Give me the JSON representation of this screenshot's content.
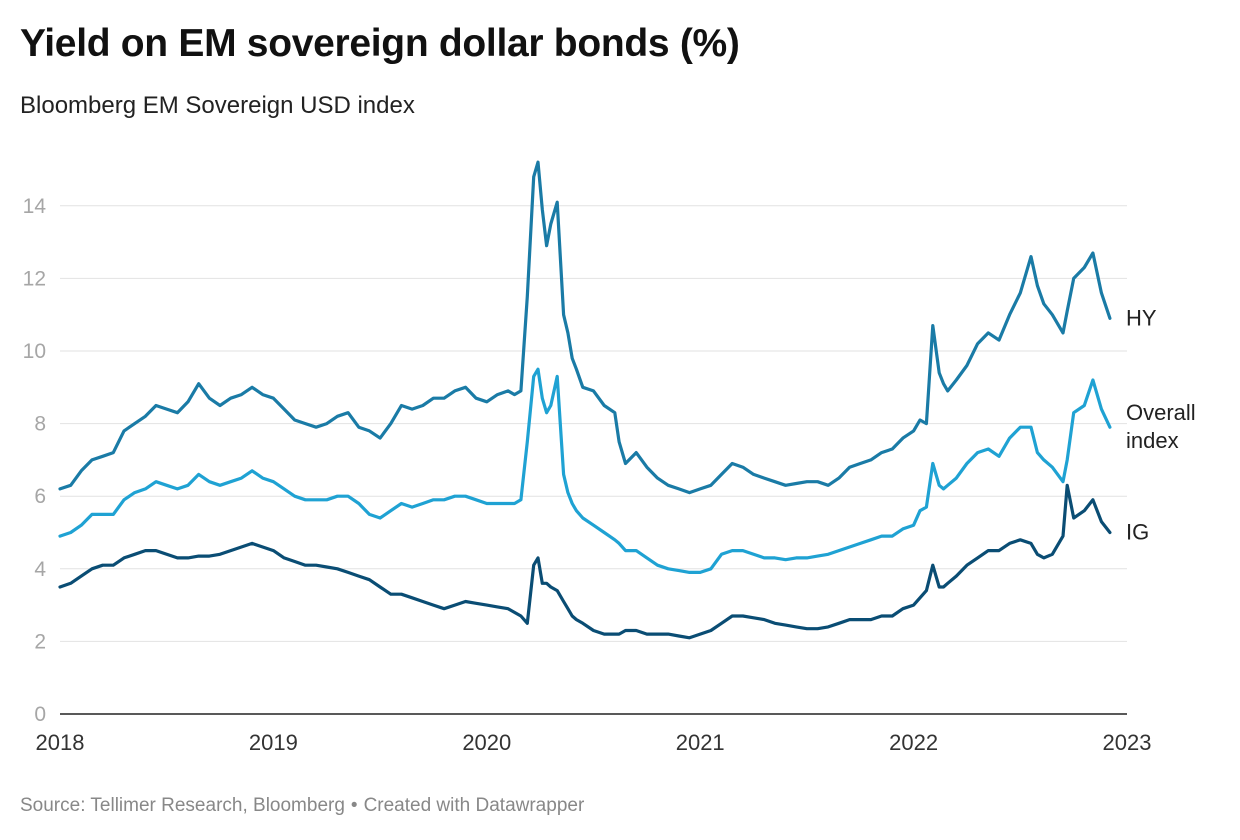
{
  "title": "Yield on EM sovereign dollar bonds (%)",
  "subtitle": "Bloomberg EM Sovereign USD index",
  "footer": {
    "source": "Source: Tellimer Research, Bloomberg",
    "separator": "•",
    "credit": "Created with Datawrapper"
  },
  "colors": {
    "hy": "#1a7ba6",
    "overall": "#1fa2d3",
    "ig": "#0a4d74",
    "grid": "#e2e2e2",
    "axis": "#222222"
  },
  "chart_data": {
    "type": "line",
    "title": "Yield on EM sovereign dollar bonds (%)",
    "subtitle": "Bloomberg EM Sovereign USD index",
    "xlabel": "",
    "ylabel": "",
    "xlim": [
      2018.0,
      2023.0
    ],
    "ylim": [
      0,
      15.5
    ],
    "yticks": [
      0,
      2,
      4,
      6,
      8,
      10,
      12,
      14
    ],
    "xticks": [
      "2018",
      "2019",
      "2020",
      "2021",
      "2022",
      "2023"
    ],
    "grid": true,
    "legend": "inline labels at right end of each line",
    "series": [
      {
        "name": "HY",
        "label": "HY",
        "color": "#1a7ba6",
        "x": [
          2018.0,
          2018.05,
          2018.1,
          2018.15,
          2018.2,
          2018.25,
          2018.3,
          2018.35,
          2018.4,
          2018.45,
          2018.5,
          2018.55,
          2018.6,
          2018.65,
          2018.7,
          2018.75,
          2018.8,
          2018.85,
          2018.9,
          2018.95,
          2019.0,
          2019.05,
          2019.1,
          2019.15,
          2019.2,
          2019.25,
          2019.3,
          2019.35,
          2019.4,
          2019.45,
          2019.5,
          2019.55,
          2019.6,
          2019.65,
          2019.7,
          2019.75,
          2019.8,
          2019.85,
          2019.9,
          2019.95,
          2020.0,
          2020.05,
          2020.1,
          2020.13,
          2020.16,
          2020.19,
          2020.22,
          2020.24,
          2020.26,
          2020.28,
          2020.3,
          2020.33,
          2020.36,
          2020.38,
          2020.4,
          2020.42,
          2020.45,
          2020.5,
          2020.55,
          2020.6,
          2020.62,
          2020.65,
          2020.7,
          2020.75,
          2020.8,
          2020.85,
          2020.9,
          2020.95,
          2021.0,
          2021.05,
          2021.1,
          2021.15,
          2021.2,
          2021.25,
          2021.3,
          2021.35,
          2021.4,
          2021.45,
          2021.5,
          2021.55,
          2021.6,
          2021.65,
          2021.7,
          2021.75,
          2021.8,
          2021.85,
          2021.9,
          2021.95,
          2022.0,
          2022.03,
          2022.06,
          2022.09,
          2022.12,
          2022.14,
          2022.16,
          2022.2,
          2022.25,
          2022.3,
          2022.35,
          2022.4,
          2022.45,
          2022.5,
          2022.55,
          2022.58,
          2022.61,
          2022.65,
          2022.7,
          2022.72,
          2022.75,
          2022.8,
          2022.84,
          2022.88,
          2022.92
        ],
        "values": [
          6.2,
          6.3,
          6.7,
          7.0,
          7.1,
          7.2,
          7.8,
          8.0,
          8.2,
          8.5,
          8.4,
          8.3,
          8.6,
          9.1,
          8.7,
          8.5,
          8.7,
          8.8,
          9.0,
          8.8,
          8.7,
          8.4,
          8.1,
          8.0,
          7.9,
          8.0,
          8.2,
          8.3,
          7.9,
          7.8,
          7.6,
          8.0,
          8.5,
          8.4,
          8.5,
          8.7,
          8.7,
          8.9,
          9.0,
          8.7,
          8.6,
          8.8,
          8.9,
          8.8,
          8.9,
          11.5,
          14.8,
          15.2,
          13.9,
          12.9,
          13.5,
          14.1,
          11.0,
          10.5,
          9.8,
          9.5,
          9.0,
          8.9,
          8.5,
          8.3,
          7.5,
          6.9,
          7.2,
          6.8,
          6.5,
          6.3,
          6.2,
          6.1,
          6.2,
          6.3,
          6.6,
          6.9,
          6.8,
          6.6,
          6.5,
          6.4,
          6.3,
          6.35,
          6.4,
          6.4,
          6.3,
          6.5,
          6.8,
          6.9,
          7.0,
          7.2,
          7.3,
          7.6,
          7.8,
          8.1,
          8.0,
          10.7,
          9.4,
          9.1,
          8.9,
          9.2,
          9.6,
          10.2,
          10.5,
          10.3,
          11.0,
          11.6,
          12.6,
          11.8,
          11.3,
          11.0,
          10.5,
          11.1,
          12.0,
          12.3,
          12.7,
          11.6,
          10.9
        ]
      },
      {
        "name": "Overall index",
        "label": [
          "Overall",
          "index"
        ],
        "color": "#1fa2d3",
        "x": [
          2018.0,
          2018.05,
          2018.1,
          2018.15,
          2018.2,
          2018.25,
          2018.3,
          2018.35,
          2018.4,
          2018.45,
          2018.5,
          2018.55,
          2018.6,
          2018.65,
          2018.7,
          2018.75,
          2018.8,
          2018.85,
          2018.9,
          2018.95,
          2019.0,
          2019.05,
          2019.1,
          2019.15,
          2019.2,
          2019.25,
          2019.3,
          2019.35,
          2019.4,
          2019.45,
          2019.5,
          2019.55,
          2019.6,
          2019.65,
          2019.7,
          2019.75,
          2019.8,
          2019.85,
          2019.9,
          2019.95,
          2020.0,
          2020.05,
          2020.1,
          2020.13,
          2020.16,
          2020.19,
          2020.22,
          2020.24,
          2020.26,
          2020.28,
          2020.3,
          2020.33,
          2020.36,
          2020.38,
          2020.4,
          2020.42,
          2020.45,
          2020.5,
          2020.55,
          2020.6,
          2020.62,
          2020.65,
          2020.7,
          2020.75,
          2020.8,
          2020.85,
          2020.9,
          2020.95,
          2021.0,
          2021.05,
          2021.1,
          2021.15,
          2021.2,
          2021.25,
          2021.3,
          2021.35,
          2021.4,
          2021.45,
          2021.5,
          2021.55,
          2021.6,
          2021.65,
          2021.7,
          2021.75,
          2021.8,
          2021.85,
          2021.9,
          2021.95,
          2022.0,
          2022.03,
          2022.06,
          2022.09,
          2022.12,
          2022.14,
          2022.16,
          2022.2,
          2022.25,
          2022.3,
          2022.35,
          2022.4,
          2022.45,
          2022.5,
          2022.55,
          2022.58,
          2022.61,
          2022.65,
          2022.7,
          2022.72,
          2022.75,
          2022.8,
          2022.84,
          2022.88,
          2022.92
        ],
        "values": [
          4.9,
          5.0,
          5.2,
          5.5,
          5.5,
          5.5,
          5.9,
          6.1,
          6.2,
          6.4,
          6.3,
          6.2,
          6.3,
          6.6,
          6.4,
          6.3,
          6.4,
          6.5,
          6.7,
          6.5,
          6.4,
          6.2,
          6.0,
          5.9,
          5.9,
          5.9,
          6.0,
          6.0,
          5.8,
          5.5,
          5.4,
          5.6,
          5.8,
          5.7,
          5.8,
          5.9,
          5.9,
          6.0,
          6.0,
          5.9,
          5.8,
          5.8,
          5.8,
          5.8,
          5.9,
          7.5,
          9.3,
          9.5,
          8.7,
          8.3,
          8.5,
          9.3,
          6.6,
          6.1,
          5.8,
          5.6,
          5.4,
          5.2,
          5.0,
          4.8,
          4.7,
          4.5,
          4.5,
          4.3,
          4.1,
          4.0,
          3.95,
          3.9,
          3.9,
          4.0,
          4.4,
          4.5,
          4.5,
          4.4,
          4.3,
          4.3,
          4.25,
          4.3,
          4.3,
          4.35,
          4.4,
          4.5,
          4.6,
          4.7,
          4.8,
          4.9,
          4.9,
          5.1,
          5.2,
          5.6,
          5.7,
          6.9,
          6.3,
          6.2,
          6.3,
          6.5,
          6.9,
          7.2,
          7.3,
          7.1,
          7.6,
          7.9,
          7.9,
          7.2,
          7.0,
          6.8,
          6.4,
          7.0,
          8.3,
          8.5,
          9.2,
          8.4,
          7.9
        ]
      },
      {
        "name": "IG",
        "label": "IG",
        "color": "#0a4d74",
        "x": [
          2018.0,
          2018.05,
          2018.1,
          2018.15,
          2018.2,
          2018.25,
          2018.3,
          2018.35,
          2018.4,
          2018.45,
          2018.5,
          2018.55,
          2018.6,
          2018.65,
          2018.7,
          2018.75,
          2018.8,
          2018.85,
          2018.9,
          2018.95,
          2019.0,
          2019.05,
          2019.1,
          2019.15,
          2019.2,
          2019.25,
          2019.3,
          2019.35,
          2019.4,
          2019.45,
          2019.5,
          2019.55,
          2019.6,
          2019.65,
          2019.7,
          2019.75,
          2019.8,
          2019.85,
          2019.9,
          2019.95,
          2020.0,
          2020.05,
          2020.1,
          2020.13,
          2020.16,
          2020.19,
          2020.22,
          2020.24,
          2020.26,
          2020.28,
          2020.3,
          2020.33,
          2020.36,
          2020.38,
          2020.4,
          2020.42,
          2020.45,
          2020.5,
          2020.55,
          2020.6,
          2020.62,
          2020.65,
          2020.7,
          2020.75,
          2020.8,
          2020.85,
          2020.9,
          2020.95,
          2021.0,
          2021.05,
          2021.1,
          2021.15,
          2021.2,
          2021.25,
          2021.3,
          2021.35,
          2021.4,
          2021.45,
          2021.5,
          2021.55,
          2021.6,
          2021.65,
          2021.7,
          2021.75,
          2021.8,
          2021.85,
          2021.9,
          2021.95,
          2022.0,
          2022.03,
          2022.06,
          2022.09,
          2022.12,
          2022.14,
          2022.16,
          2022.2,
          2022.25,
          2022.3,
          2022.35,
          2022.4,
          2022.45,
          2022.5,
          2022.55,
          2022.58,
          2022.61,
          2022.65,
          2022.7,
          2022.72,
          2022.75,
          2022.8,
          2022.84,
          2022.88,
          2022.92
        ],
        "values": [
          3.5,
          3.6,
          3.8,
          4.0,
          4.1,
          4.1,
          4.3,
          4.4,
          4.5,
          4.5,
          4.4,
          4.3,
          4.3,
          4.35,
          4.35,
          4.4,
          4.5,
          4.6,
          4.7,
          4.6,
          4.5,
          4.3,
          4.2,
          4.1,
          4.1,
          4.05,
          4.0,
          3.9,
          3.8,
          3.7,
          3.5,
          3.3,
          3.3,
          3.2,
          3.1,
          3.0,
          2.9,
          3.0,
          3.1,
          3.05,
          3.0,
          2.95,
          2.9,
          2.8,
          2.7,
          2.5,
          4.1,
          4.3,
          3.6,
          3.6,
          3.5,
          3.4,
          3.1,
          2.9,
          2.7,
          2.6,
          2.5,
          2.3,
          2.2,
          2.2,
          2.2,
          2.3,
          2.3,
          2.2,
          2.2,
          2.2,
          2.15,
          2.1,
          2.2,
          2.3,
          2.5,
          2.7,
          2.7,
          2.65,
          2.6,
          2.5,
          2.45,
          2.4,
          2.35,
          2.35,
          2.4,
          2.5,
          2.6,
          2.6,
          2.6,
          2.7,
          2.7,
          2.9,
          3.0,
          3.2,
          3.4,
          4.1,
          3.5,
          3.5,
          3.6,
          3.8,
          4.1,
          4.3,
          4.5,
          4.5,
          4.7,
          4.8,
          4.7,
          4.4,
          4.3,
          4.4,
          4.9,
          6.3,
          5.4,
          5.6,
          5.9,
          5.3,
          5.0
        ]
      }
    ]
  }
}
